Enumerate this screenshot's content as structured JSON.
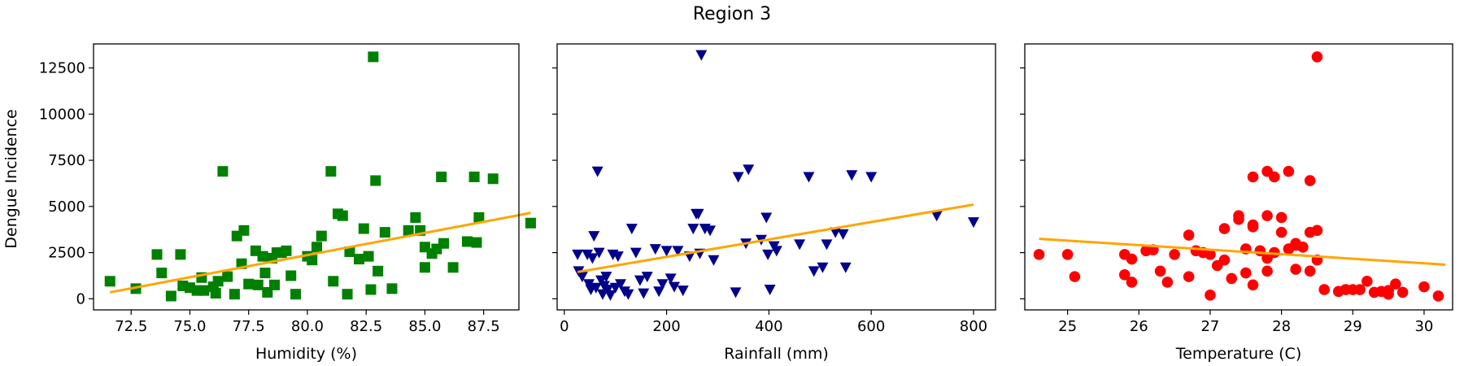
{
  "figure": {
    "title": "Region 3",
    "ylabel": "Dengue Incidence",
    "marker_color": {
      "humidity": "#008000",
      "rainfall": "#00008b",
      "temperature": "#ff0000"
    },
    "fit_color": "#ffa500"
  },
  "chart_data": [
    {
      "type": "scatter",
      "marker": "square",
      "xlabel": "Humidity (%)",
      "ylabel": "Dengue Incidence",
      "xlim": [
        70.9,
        89.0
      ],
      "ylim": [
        -600,
        13800
      ],
      "xticks": [
        72.5,
        75.0,
        77.5,
        80.0,
        82.5,
        85.0,
        87.5
      ],
      "xtick_labels": [
        "72.5",
        "75.0",
        "77.5",
        "80.0",
        "82.5",
        "85.0",
        "87.5"
      ],
      "yticks": [
        0,
        2500,
        5000,
        7500,
        10000,
        12500
      ],
      "ytick_labels": [
        "0",
        "2500",
        "5000",
        "7500",
        "10000",
        "12500"
      ],
      "points": [
        [
          71.6,
          950
        ],
        [
          72.7,
          550
        ],
        [
          73.6,
          2400
        ],
        [
          73.8,
          1400
        ],
        [
          74.2,
          150
        ],
        [
          74.6,
          2400
        ],
        [
          74.7,
          700
        ],
        [
          75.0,
          600
        ],
        [
          75.3,
          450
        ],
        [
          75.5,
          1150
        ],
        [
          75.6,
          450
        ],
        [
          76.0,
          650
        ],
        [
          76.1,
          300
        ],
        [
          76.2,
          950
        ],
        [
          76.4,
          6900
        ],
        [
          76.6,
          1200
        ],
        [
          76.9,
          250
        ],
        [
          77.0,
          3400
        ],
        [
          77.2,
          1900
        ],
        [
          77.3,
          3700
        ],
        [
          77.5,
          800
        ],
        [
          77.8,
          2600
        ],
        [
          77.9,
          750
        ],
        [
          78.1,
          2300
        ],
        [
          78.2,
          1400
        ],
        [
          78.3,
          350
        ],
        [
          78.5,
          2200
        ],
        [
          78.6,
          750
        ],
        [
          78.7,
          2500
        ],
        [
          78.9,
          2500
        ],
        [
          79.1,
          2600
        ],
        [
          79.3,
          1250
        ],
        [
          79.5,
          250
        ],
        [
          80.0,
          2300
        ],
        [
          80.2,
          2100
        ],
        [
          80.4,
          2800
        ],
        [
          80.6,
          3400
        ],
        [
          81.0,
          6900
        ],
        [
          81.1,
          950
        ],
        [
          81.3,
          4600
        ],
        [
          81.5,
          4500
        ],
        [
          81.7,
          250
        ],
        [
          81.8,
          2550
        ],
        [
          82.2,
          2150
        ],
        [
          82.4,
          3800
        ],
        [
          82.6,
          2300
        ],
        [
          82.7,
          500
        ],
        [
          82.8,
          13100
        ],
        [
          82.9,
          6400
        ],
        [
          83.0,
          1500
        ],
        [
          83.3,
          3600
        ],
        [
          83.6,
          550
        ],
        [
          84.3,
          3700
        ],
        [
          84.6,
          4400
        ],
        [
          84.8,
          3700
        ],
        [
          85.0,
          1700
        ],
        [
          85.0,
          2800
        ],
        [
          85.3,
          2450
        ],
        [
          85.5,
          2700
        ],
        [
          85.7,
          6600
        ],
        [
          85.8,
          3000
        ],
        [
          86.2,
          1700
        ],
        [
          86.8,
          3100
        ],
        [
          87.1,
          6600
        ],
        [
          87.2,
          3050
        ],
        [
          87.3,
          4400
        ],
        [
          87.9,
          6500
        ],
        [
          89.5,
          4100
        ]
      ],
      "fit": {
        "x": [
          71.6,
          89.5
        ],
        "y": [
          350,
          4650
        ]
      }
    },
    {
      "type": "scatter",
      "marker": "triangle-down",
      "xlabel": "Rainfall (mm)",
      "xlim": [
        -14,
        843
      ],
      "ylim": [
        -600,
        13800
      ],
      "xticks": [
        0,
        200,
        400,
        600,
        800
      ],
      "xtick_labels": [
        "0",
        "200",
        "400",
        "600",
        "800"
      ],
      "yticks": [
        0,
        2500,
        5000,
        7500,
        10000,
        12500
      ],
      "points": [
        [
          26,
          2400
        ],
        [
          28,
          1500
        ],
        [
          35,
          1200
        ],
        [
          45,
          2400
        ],
        [
          48,
          800
        ],
        [
          52,
          500
        ],
        [
          55,
          2200
        ],
        [
          58,
          3400
        ],
        [
          62,
          600
        ],
        [
          65,
          6900
        ],
        [
          68,
          2500
        ],
        [
          72,
          1000
        ],
        [
          75,
          250
        ],
        [
          78,
          700
        ],
        [
          82,
          1200
        ],
        [
          85,
          500
        ],
        [
          90,
          200
        ],
        [
          95,
          2400
        ],
        [
          100,
          600
        ],
        [
          105,
          2300
        ],
        [
          110,
          800
        ],
        [
          118,
          400
        ],
        [
          125,
          250
        ],
        [
          132,
          3800
        ],
        [
          140,
          2500
        ],
        [
          148,
          1000
        ],
        [
          155,
          300
        ],
        [
          162,
          1200
        ],
        [
          178,
          2700
        ],
        [
          185,
          400
        ],
        [
          192,
          800
        ],
        [
          200,
          2600
        ],
        [
          208,
          1100
        ],
        [
          215,
          650
        ],
        [
          222,
          2600
        ],
        [
          232,
          450
        ],
        [
          245,
          2300
        ],
        [
          252,
          3800
        ],
        [
          258,
          4600
        ],
        [
          262,
          4600
        ],
        [
          265,
          2450
        ],
        [
          268,
          13200
        ],
        [
          275,
          3800
        ],
        [
          285,
          3700
        ],
        [
          292,
          2100
        ],
        [
          335,
          350
        ],
        [
          340,
          6600
        ],
        [
          355,
          3000
        ],
        [
          360,
          7000
        ],
        [
          385,
          3200
        ],
        [
          395,
          4400
        ],
        [
          398,
          2400
        ],
        [
          402,
          500
        ],
        [
          410,
          2850
        ],
        [
          415,
          2600
        ],
        [
          460,
          2950
        ],
        [
          478,
          6600
        ],
        [
          488,
          1500
        ],
        [
          505,
          1700
        ],
        [
          513,
          2950
        ],
        [
          530,
          3600
        ],
        [
          545,
          3500
        ],
        [
          550,
          1700
        ],
        [
          562,
          6700
        ],
        [
          600,
          6600
        ],
        [
          728,
          4500
        ],
        [
          800,
          4150
        ]
      ],
      "fit": {
        "x": [
          26,
          800
        ],
        "y": [
          1450,
          5100
        ]
      }
    },
    {
      "type": "scatter",
      "marker": "circle",
      "xlabel": "Temperature (C)",
      "xlim": [
        24.4,
        30.4
      ],
      "ylim": [
        -600,
        13800
      ],
      "xticks": [
        25,
        26,
        27,
        28,
        29,
        30
      ],
      "xtick_labels": [
        "25",
        "26",
        "27",
        "28",
        "29",
        "30"
      ],
      "yticks": [
        0,
        2500,
        5000,
        7500,
        10000,
        12500
      ],
      "points": [
        [
          24.6,
          2400
        ],
        [
          25.0,
          2400
        ],
        [
          25.1,
          1200
        ],
        [
          25.8,
          2400
        ],
        [
          25.8,
          1300
        ],
        [
          25.9,
          900
        ],
        [
          25.9,
          2150
        ],
        [
          26.1,
          2600
        ],
        [
          26.2,
          2650
        ],
        [
          26.3,
          1500
        ],
        [
          26.4,
          900
        ],
        [
          26.5,
          2400
        ],
        [
          26.7,
          3450
        ],
        [
          26.7,
          1200
        ],
        [
          26.8,
          2600
        ],
        [
          26.9,
          2500
        ],
        [
          27.0,
          2400
        ],
        [
          27.0,
          200
        ],
        [
          27.1,
          1800
        ],
        [
          27.2,
          2100
        ],
        [
          27.2,
          3800
        ],
        [
          27.3,
          1100
        ],
        [
          27.4,
          4500
        ],
        [
          27.4,
          4300
        ],
        [
          27.5,
          2700
        ],
        [
          27.5,
          1400
        ],
        [
          27.6,
          3900
        ],
        [
          27.6,
          4000
        ],
        [
          27.6,
          6600
        ],
        [
          27.6,
          750
        ],
        [
          27.7,
          2600
        ],
        [
          27.8,
          1500
        ],
        [
          27.8,
          2200
        ],
        [
          27.8,
          4500
        ],
        [
          27.8,
          6900
        ],
        [
          27.9,
          6600
        ],
        [
          27.9,
          2500
        ],
        [
          28.0,
          3600
        ],
        [
          28.0,
          4400
        ],
        [
          28.1,
          6900
        ],
        [
          28.1,
          2700
        ],
        [
          28.2,
          2900
        ],
        [
          28.2,
          3000
        ],
        [
          28.2,
          1600
        ],
        [
          28.3,
          2800
        ],
        [
          28.4,
          1500
        ],
        [
          28.4,
          3600
        ],
        [
          28.4,
          6400
        ],
        [
          28.5,
          13100
        ],
        [
          28.5,
          3700
        ],
        [
          28.5,
          2100
        ],
        [
          28.6,
          500
        ],
        [
          28.8,
          400
        ],
        [
          28.9,
          500
        ],
        [
          29.0,
          500
        ],
        [
          29.1,
          500
        ],
        [
          29.2,
          950
        ],
        [
          29.3,
          350
        ],
        [
          29.4,
          400
        ],
        [
          29.5,
          250
        ],
        [
          29.5,
          450
        ],
        [
          29.6,
          800
        ],
        [
          29.7,
          350
        ],
        [
          30.0,
          650
        ],
        [
          30.2,
          150
        ]
      ],
      "fit": {
        "x": [
          24.6,
          30.3
        ],
        "y": [
          3250,
          1850
        ]
      }
    }
  ]
}
